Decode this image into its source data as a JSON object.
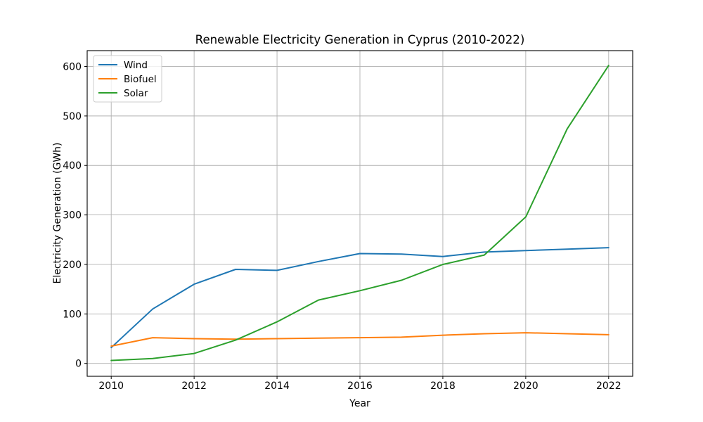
{
  "chart_data": {
    "type": "line",
    "title": "Renewable Electricity Generation in Cyprus (2010-2022)",
    "xlabel": "Year",
    "ylabel": "Electricity Generation (GWh)",
    "x": [
      2010,
      2011,
      2012,
      2013,
      2014,
      2015,
      2016,
      2017,
      2018,
      2019,
      2020,
      2021,
      2022
    ],
    "series": [
      {
        "name": "Wind",
        "color": "#1f77b4",
        "values": [
          32,
          110,
          160,
          190,
          188,
          206,
          222,
          221,
          216,
          225,
          228,
          231,
          234
        ]
      },
      {
        "name": "Biofuel",
        "color": "#ff7f0e",
        "values": [
          35,
          52,
          50,
          49,
          50,
          51,
          52,
          53,
          57,
          60,
          62,
          60,
          58
        ]
      },
      {
        "name": "Solar",
        "color": "#2ca02c",
        "values": [
          6,
          10,
          20,
          47,
          84,
          128,
          147,
          168,
          200,
          219,
          296,
          474,
          602
        ]
      }
    ],
    "xticks": [
      2010,
      2012,
      2014,
      2016,
      2018,
      2020,
      2022
    ],
    "yticks": [
      0,
      100,
      200,
      300,
      400,
      500,
      600
    ],
    "xlim": [
      2009.42,
      2022.58
    ],
    "ylim": [
      -26,
      632
    ],
    "grid": true,
    "legend_position": "upper left"
  },
  "colors": {
    "background": "#ffffff",
    "grid": "#b0b0b0",
    "spine": "#000000",
    "text": "#000000",
    "legend_border": "#cccccc",
    "legend_fill": "#ffffff"
  }
}
